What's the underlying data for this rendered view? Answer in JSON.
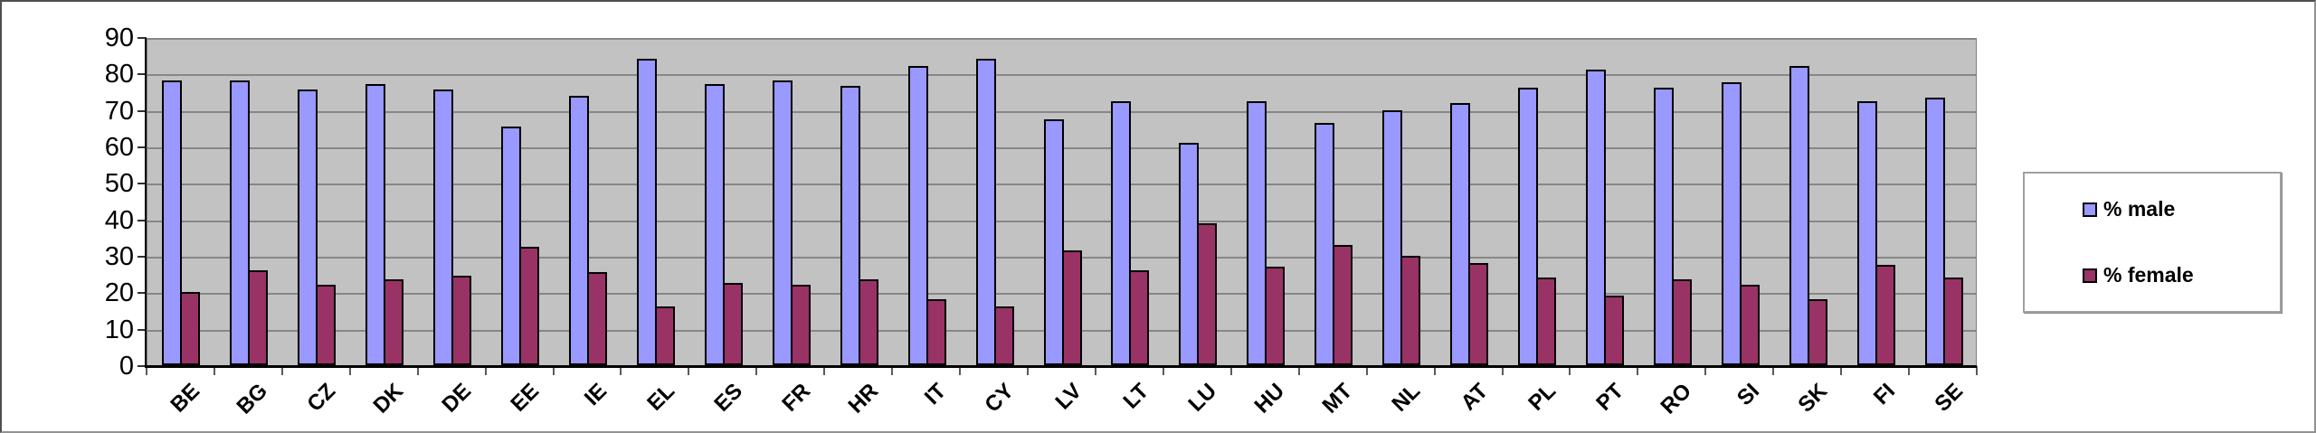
{
  "chart_data": {
    "type": "bar",
    "title": "",
    "xlabel": "",
    "ylabel": "",
    "categories": [
      "BE",
      "BG",
      "CZ",
      "DK",
      "DE",
      "EE",
      "IE",
      "EL",
      "ES",
      "FR",
      "HR",
      "IT",
      "CY",
      "LV",
      "LT",
      "LU",
      "HU",
      "MT",
      "NL",
      "AT",
      "PL",
      "PT",
      "RO",
      "SI",
      "SK",
      "FI",
      "SE"
    ],
    "series": [
      {
        "name": "% male",
        "color": "#9999FF",
        "values": [
          78,
          78,
          75.5,
          77,
          75.5,
          65.5,
          74,
          84,
          77,
          78,
          76.5,
          82,
          84,
          67.5,
          72.5,
          61,
          72.5,
          66.5,
          70,
          72,
          76,
          81,
          76,
          77.5,
          82,
          72.5,
          73.5
        ]
      },
      {
        "name": "% female",
        "color": "#993366",
        "values": [
          20,
          26,
          22,
          23.5,
          24.5,
          32.5,
          25.5,
          16,
          22.5,
          22,
          23.5,
          18,
          16,
          31.5,
          26,
          39,
          27,
          33,
          30,
          28,
          24,
          19,
          23.5,
          22,
          18,
          27.5,
          24
        ]
      }
    ],
    "ylim": [
      0,
      90
    ],
    "yticks": [
      0,
      10,
      20,
      30,
      40,
      50,
      60,
      70,
      80,
      90
    ],
    "grid": "horizontal-gray",
    "plot_background": "#C2C2C2",
    "gridline_color": "#878787",
    "legend_position": "right-box"
  },
  "legend": {
    "male_label": "% male",
    "female_label": "% female"
  }
}
